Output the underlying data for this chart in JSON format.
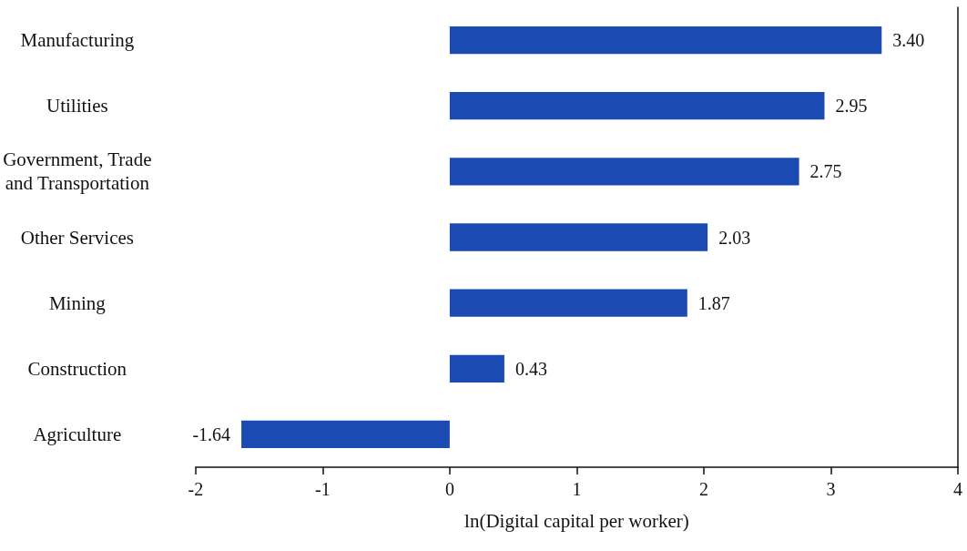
{
  "chart_data": {
    "type": "bar",
    "orientation": "horizontal",
    "xlabel": "ln(Digital capital per worker)",
    "categories": [
      "Manufacturing",
      "Utilities",
      "Government, Trade\nand Transportation",
      "Other Services",
      "Mining",
      "Construction",
      "Agriculture"
    ],
    "values": [
      3.4,
      2.95,
      2.75,
      2.03,
      1.87,
      0.43,
      -1.64
    ],
    "value_labels": [
      "3.40",
      "2.95",
      "2.75",
      "2.03",
      "1.87",
      "0.43",
      "-1.64"
    ],
    "color": "#1c4ab3",
    "xlim": [
      -2,
      4
    ],
    "xticks": [
      -2,
      -1,
      0,
      1,
      2,
      3,
      4
    ],
    "grid": false
  }
}
